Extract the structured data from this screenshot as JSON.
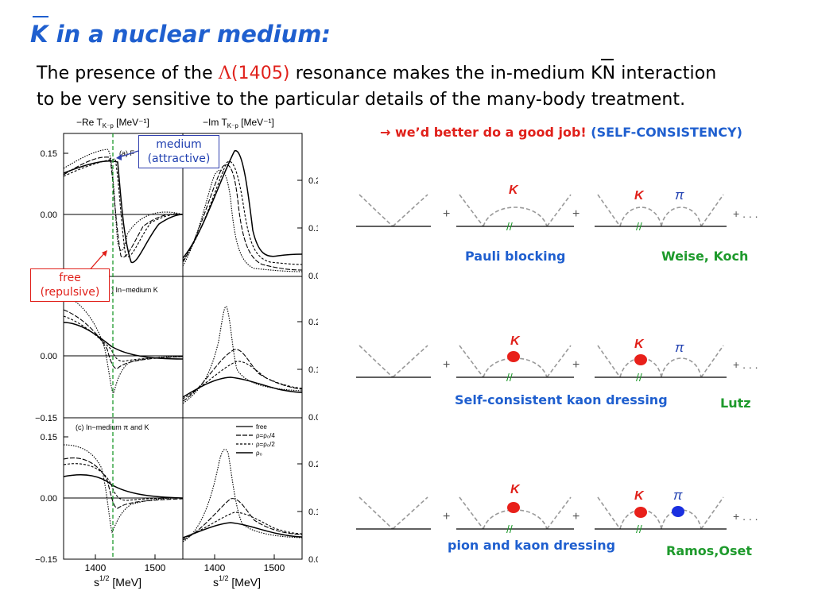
{
  "title": {
    "k_letter": "K",
    "rest": " in a nuclear medium:"
  },
  "intro": {
    "line1_part1": "The presence of the ",
    "lambda_symbol": "Λ",
    "lambda_mass": "(1405)",
    "line1_part2": " resonance makes the in-medium KN interaction",
    "line2": "to be very sensitive to the particular details of the many-body treatment."
  },
  "conclusion": {
    "arrow": "→",
    "text": "we’d better do a good job!",
    "note": "(SELF-CONSISTENCY)"
  },
  "callouts": {
    "medium": [
      "medium",
      "(attractive)"
    ],
    "free": [
      "free",
      "(repulsive)"
    ]
  },
  "plots": {
    "left_header": "−Re T",
    "left_header_sub": "K⁻p",
    "left_header_unit": " [MeV⁻¹]",
    "right_header": "−Im T",
    "right_header_sub": "K⁻p",
    "right_header_unit": " [MeV⁻¹]",
    "left_yticks": {
      "top": [
        "0.15",
        "0.00"
      ],
      "middle": [
        "0.00",
        "−0.15"
      ],
      "bottom": [
        "0.15",
        "0.00",
        "−0.15"
      ]
    },
    "right_yticks": {
      "top": [
        "0.2",
        "0.1",
        "0.0"
      ],
      "middle": [
        "0.2",
        "0.1",
        "0.0"
      ],
      "bottom": [
        "0.2",
        "0.1",
        "0.0"
      ]
    },
    "xticks": [
      "1400",
      "1500"
    ],
    "xlabel": "s",
    "xlabel_sup": "1/2",
    "xlabel_unit": " [MeV]",
    "panel_labels": [
      "(a) F",
      ") In−medium K",
      "(c) In−medium π and K"
    ],
    "legend": [
      "free",
      "ρ=ρ₀/4",
      "ρ=ρ₀/2",
      "ρ₀"
    ]
  },
  "diagrams": {
    "labels": {
      "pauli": "Pauli blocking",
      "weise": "Weise, Koch",
      "self_consistent": "Self-consistent kaon dressing",
      "lutz": "Lutz",
      "pion_kaon": "pion and kaon dressing",
      "ramos": "Ramos,Oset"
    },
    "k_label": "K",
    "pi_label": "π",
    "plus": "+",
    "ellipsis": "+ . . .",
    "hole_mark": "//",
    "colors": {
      "kaon_blob": "#e8201a",
      "pion_blob": "#1a2fe0",
      "k_label": "#e0201a",
      "pi_label": "#1f3fb0",
      "slash": "#1e9a2c"
    }
  }
}
